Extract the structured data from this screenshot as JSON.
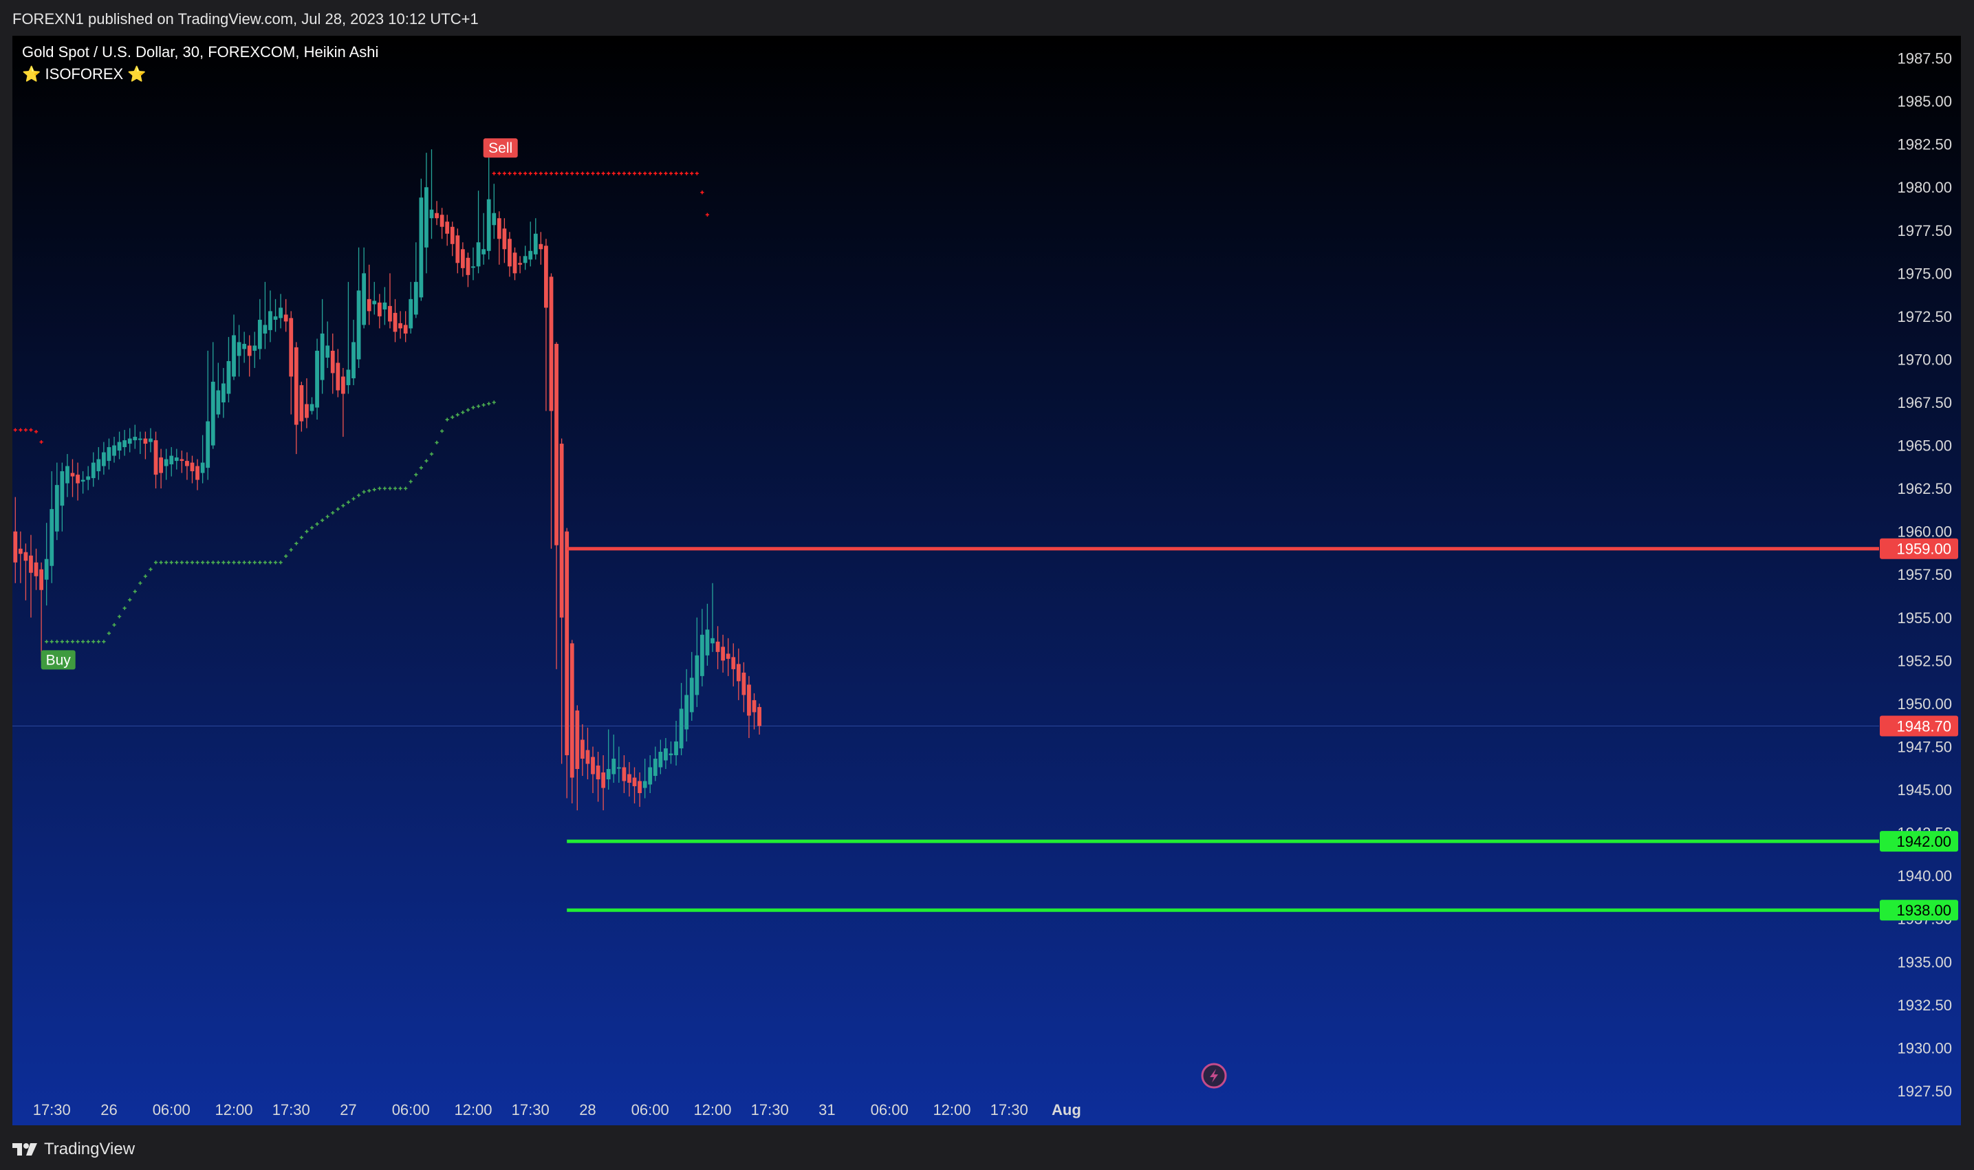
{
  "header": {
    "published_text": "FOREXN1 published on TradingView.com, Jul 28, 2023 10:12 UTC+1"
  },
  "legend": {
    "symbol_line": "Gold Spot / U.S. Dollar, 30, FOREXCOM, Heikin Ashi",
    "star_left": "⭐",
    "indicator_name": "ISOFOREX",
    "star_right": "⭐"
  },
  "footer": {
    "brand": "TradingView",
    "logo_icon": "tradingview-logo-icon"
  },
  "colors": {
    "bull": "#26a69a",
    "bear": "#ef5350",
    "gradient_top": "#000000",
    "gradient_bottom": "#0d2e9a",
    "stop_dots": "#ff1a1a",
    "trail_dots": "#4caf50",
    "sell_line": "#ef4444",
    "target_line": "#22ee33"
  },
  "chart_data": {
    "type": "candlestick",
    "style": "Heikin Ashi",
    "symbol": "Gold Spot / U.S. Dollar",
    "interval": "30",
    "exchange": "FOREXCOM",
    "ylim": [
      1925.5,
      1988.8
    ],
    "y_ticks": [
      "1987.50",
      "1985.00",
      "1982.50",
      "1980.00",
      "1977.50",
      "1975.00",
      "1972.50",
      "1970.00",
      "1967.50",
      "1965.00",
      "1962.50",
      "1960.00",
      "1957.50",
      "1955.00",
      "1952.50",
      "1950.00",
      "1947.50",
      "1945.00",
      "1942.50",
      "1940.00",
      "1937.50",
      "1935.00",
      "1932.50",
      "1930.00",
      "1927.50"
    ],
    "x_ticks": [
      {
        "label": "17:30",
        "bar": 7
      },
      {
        "label": "26",
        "bar": 18
      },
      {
        "label": "06:00",
        "bar": 30
      },
      {
        "label": "12:00",
        "bar": 42
      },
      {
        "label": "17:30",
        "bar": 53
      },
      {
        "label": "27",
        "bar": 64
      },
      {
        "label": "06:00",
        "bar": 76
      },
      {
        "label": "12:00",
        "bar": 88
      },
      {
        "label": "17:30",
        "bar": 99
      },
      {
        "label": "28",
        "bar": 110
      },
      {
        "label": "06:00",
        "bar": 122
      },
      {
        "label": "12:00",
        "bar": 134
      },
      {
        "label": "17:30",
        "bar": 145
      },
      {
        "label": "31",
        "bar": 156
      },
      {
        "label": "06:00",
        "bar": 168
      },
      {
        "label": "12:00",
        "bar": 180
      },
      {
        "label": "17:30",
        "bar": 191
      },
      {
        "label": "Aug",
        "bar": 202
      }
    ],
    "last_price": 1948.7,
    "price_labels": [
      {
        "value": "1959.00",
        "kind": "sell"
      },
      {
        "value": "1948.70",
        "kind": "last"
      },
      {
        "value": "1942.00",
        "kind": "target"
      },
      {
        "value": "1938.00",
        "kind": "target"
      }
    ],
    "horizontal_levels": [
      {
        "price": 1959.0,
        "kind": "sell",
        "from_bar": 106
      },
      {
        "price": 1942.0,
        "kind": "target",
        "from_bar": 106
      },
      {
        "price": 1938.0,
        "kind": "target",
        "from_bar": 106
      }
    ],
    "signals": [
      {
        "label": "Buy",
        "bar": 6,
        "price": 1953.5
      },
      {
        "label": "Sell",
        "bar": 91,
        "price": 1981
      }
    ],
    "stop_dots": [
      {
        "from_bar": 0,
        "to_bar": 5,
        "values": [
          1965.9,
          1965.9,
          1965.9,
          1965.9,
          1965.8,
          1965.2
        ]
      },
      {
        "from_bar": 92,
        "to_bar": 131,
        "flat": 1980.8
      },
      {
        "bar": 132,
        "price": 1979.7
      },
      {
        "bar": 133,
        "price": 1978.4
      }
    ],
    "trail_dots_knots": [
      [
        6,
        1953.6
      ],
      [
        17,
        1953.6
      ],
      [
        24,
        1957.0
      ],
      [
        27,
        1958.2
      ],
      [
        51,
        1958.2
      ],
      [
        54,
        1959.3
      ],
      [
        56,
        1960.0
      ],
      [
        62,
        1961.3
      ],
      [
        67,
        1962.3
      ],
      [
        70,
        1962.5
      ],
      [
        75,
        1962.5
      ],
      [
        80,
        1964.5
      ],
      [
        83,
        1966.5
      ],
      [
        88,
        1967.2
      ],
      [
        92,
        1967.5
      ]
    ],
    "candles": [
      [
        1960.0,
        1958.2,
        1962.0,
        1957.0
      ],
      [
        1959.0,
        1958.7,
        1960.0,
        1957.0
      ],
      [
        1958.8,
        1958.3,
        1959.3,
        1956.0
      ],
      [
        1958.6,
        1957.6,
        1959.8,
        1955.0
      ],
      [
        1958.2,
        1957.4,
        1959.0,
        1956.6
      ],
      [
        1957.8,
        1956.6,
        1958.2,
        1952.5
      ],
      [
        1957.2,
        1958.4,
        1960.5,
        1955.7
      ],
      [
        1958.0,
        1961.3,
        1963.5,
        1957.0
      ],
      [
        1960.0,
        1962.7,
        1964.0,
        1959.5
      ],
      [
        1961.5,
        1963.5,
        1964.0,
        1960.0
      ],
      [
        1962.8,
        1963.8,
        1964.5,
        1962.0
      ],
      [
        1963.4,
        1963.2,
        1964.2,
        1962.0
      ],
      [
        1963.3,
        1962.8,
        1964.0,
        1961.8
      ],
      [
        1962.9,
        1963.0,
        1963.5,
        1962.2
      ],
      [
        1963.0,
        1963.2,
        1963.8,
        1962.4
      ],
      [
        1963.1,
        1964.0,
        1964.6,
        1962.6
      ],
      [
        1963.5,
        1964.2,
        1964.9,
        1963.0
      ],
      [
        1963.8,
        1964.6,
        1965.2,
        1963.3
      ],
      [
        1964.1,
        1964.9,
        1965.4,
        1963.6
      ],
      [
        1964.4,
        1965.0,
        1965.5,
        1964.0
      ],
      [
        1964.7,
        1965.2,
        1965.8,
        1964.2
      ],
      [
        1964.9,
        1965.3,
        1965.9,
        1964.4
      ],
      [
        1965.1,
        1965.4,
        1966.0,
        1964.6
      ],
      [
        1965.3,
        1965.5,
        1966.2,
        1964.8
      ],
      [
        1965.4,
        1965.4,
        1965.8,
        1964.5
      ],
      [
        1965.4,
        1965.1,
        1965.8,
        1964.2
      ],
      [
        1965.2,
        1965.4,
        1966.0,
        1964.6
      ],
      [
        1965.3,
        1963.3,
        1965.8,
        1962.5
      ],
      [
        1964.3,
        1963.4,
        1964.8,
        1962.5
      ],
      [
        1963.8,
        1964.2,
        1964.8,
        1963.0
      ],
      [
        1963.9,
        1964.4,
        1964.9,
        1963.2
      ],
      [
        1964.1,
        1964.3,
        1964.8,
        1963.6
      ],
      [
        1964.2,
        1964.1,
        1964.7,
        1963.4
      ],
      [
        1964.1,
        1963.8,
        1964.6,
        1963.0
      ],
      [
        1964.0,
        1963.5,
        1964.4,
        1962.8
      ],
      [
        1963.8,
        1963.0,
        1964.2,
        1962.4
      ],
      [
        1963.4,
        1964.0,
        1965.6,
        1962.8
      ],
      [
        1963.7,
        1966.4,
        1970.5,
        1963.0
      ],
      [
        1965.0,
        1968.7,
        1971.0,
        1964.8
      ],
      [
        1966.8,
        1968.2,
        1969.8,
        1966.6
      ],
      [
        1967.5,
        1968.6,
        1969.5,
        1966.6
      ],
      [
        1968.0,
        1969.9,
        1971.3,
        1967.5
      ],
      [
        1969.0,
        1971.4,
        1972.6,
        1968.8
      ],
      [
        1970.2,
        1971.0,
        1972.0,
        1969.0
      ],
      [
        1970.6,
        1970.9,
        1971.6,
        1969.8
      ],
      [
        1970.8,
        1970.2,
        1971.4,
        1969.0
      ],
      [
        1970.5,
        1970.8,
        1971.6,
        1969.5
      ],
      [
        1970.6,
        1972.3,
        1973.5,
        1970.0
      ],
      [
        1971.5,
        1972.0,
        1974.5,
        1970.6
      ],
      [
        1971.7,
        1972.8,
        1974.0,
        1971.0
      ],
      [
        1972.3,
        1972.5,
        1973.5,
        1971.6
      ],
      [
        1972.4,
        1973.0,
        1973.8,
        1971.8
      ],
      [
        1972.6,
        1972.2,
        1973.5,
        1971.6
      ],
      [
        1972.4,
        1969.0,
        1972.8,
        1966.8
      ],
      [
        1970.7,
        1966.2,
        1971.0,
        1964.5
      ],
      [
        1968.5,
        1966.4,
        1968.7,
        1965.8
      ],
      [
        1967.4,
        1966.6,
        1968.9,
        1966.0
      ],
      [
        1967.0,
        1967.4,
        1967.8,
        1966.8
      ],
      [
        1967.2,
        1970.5,
        1971.2,
        1966.5
      ],
      [
        1968.8,
        1971.5,
        1973.5,
        1968.0
      ],
      [
        1970.1,
        1970.8,
        1972.2,
        1969.5
      ],
      [
        1970.5,
        1969.2,
        1971.5,
        1968.0
      ],
      [
        1969.8,
        1968.2,
        1970.6,
        1967.8
      ],
      [
        1969.0,
        1968.0,
        1969.5,
        1965.5
      ],
      [
        1968.5,
        1969.4,
        1974.5,
        1968.0
      ],
      [
        1968.9,
        1971.0,
        1972.3,
        1968.5
      ],
      [
        1970.0,
        1974.0,
        1976.5,
        1969.5
      ],
      [
        1972.0,
        1975.0,
        1976.5,
        1971.8
      ],
      [
        1973.5,
        1972.8,
        1975.5,
        1972.0
      ],
      [
        1973.2,
        1973.4,
        1974.5,
        1972.6
      ],
      [
        1973.3,
        1972.5,
        1973.8,
        1971.8
      ],
      [
        1972.9,
        1973.3,
        1974.2,
        1972.0
      ],
      [
        1973.1,
        1972.2,
        1975.0,
        1971.8
      ],
      [
        1972.7,
        1971.6,
        1973.5,
        1971.0
      ],
      [
        1972.1,
        1971.8,
        1972.8,
        1971.2
      ],
      [
        1972.0,
        1971.5,
        1972.8,
        1971.0
      ],
      [
        1971.8,
        1973.5,
        1974.5,
        1971.5
      ],
      [
        1972.6,
        1974.5,
        1976.8,
        1972.4
      ],
      [
        1973.6,
        1979.4,
        1980.5,
        1973.4
      ],
      [
        1976.5,
        1980.0,
        1982.0,
        1975.0
      ],
      [
        1978.2,
        1978.7,
        1982.2,
        1977.0
      ],
      [
        1978.5,
        1978.2,
        1979.2,
        1977.8
      ],
      [
        1978.4,
        1977.7,
        1978.8,
        1977.0
      ],
      [
        1978.0,
        1977.3,
        1978.4,
        1976.6
      ],
      [
        1977.7,
        1976.7,
        1978.0,
        1976.0
      ],
      [
        1977.2,
        1975.6,
        1977.6,
        1975.0
      ],
      [
        1976.4,
        1975.3,
        1976.8,
        1974.8
      ],
      [
        1975.9,
        1974.9,
        1976.2,
        1974.2
      ],
      [
        1975.4,
        1975.4,
        1976.5,
        1974.6
      ],
      [
        1975.4,
        1976.8,
        1979.8,
        1975.0
      ],
      [
        1976.1,
        1976.4,
        1978.5,
        1975.5
      ],
      [
        1976.3,
        1979.3,
        1982.2,
        1975.8
      ],
      [
        1977.8,
        1978.5,
        1980.2,
        1977.0
      ],
      [
        1978.2,
        1977.0,
        1978.6,
        1975.5
      ],
      [
        1977.6,
        1976.4,
        1978.2,
        1975.6
      ],
      [
        1977.0,
        1975.4,
        1977.4,
        1974.8
      ],
      [
        1976.2,
        1975.0,
        1976.5,
        1974.6
      ],
      [
        1975.6,
        1975.5,
        1976.0,
        1975.0
      ],
      [
        1975.6,
        1976.0,
        1976.6,
        1975.2
      ],
      [
        1975.8,
        1976.3,
        1978.0,
        1975.4
      ],
      [
        1976.1,
        1977.3,
        1978.2,
        1975.8
      ],
      [
        1976.7,
        1976.4,
        1977.4,
        1975.5
      ],
      [
        1976.6,
        1973.0,
        1977.0,
        1967.0
      ],
      [
        1974.8,
        1967.0,
        1975.0,
        1959.0
      ],
      [
        1970.9,
        1959.2,
        1971.0,
        1952.0
      ],
      [
        1965.1,
        1955.0,
        1965.4,
        1946.5
      ],
      [
        1960.0,
        1947.0,
        1960.2,
        1944.5
      ],
      [
        1953.5,
        1945.7,
        1953.7,
        1944.2
      ],
      [
        1949.6,
        1946.2,
        1949.9,
        1943.8
      ],
      [
        1947.9,
        1946.8,
        1948.8,
        1945.8
      ],
      [
        1947.3,
        1946.5,
        1948.6,
        1945.6
      ],
      [
        1946.9,
        1945.9,
        1947.5,
        1944.8
      ],
      [
        1946.4,
        1945.6,
        1947.2,
        1944.3
      ],
      [
        1946.0,
        1945.1,
        1947.0,
        1943.8
      ],
      [
        1945.6,
        1946.2,
        1948.5,
        1945.0
      ],
      [
        1945.9,
        1946.8,
        1948.2,
        1945.4
      ],
      [
        1946.3,
        1946.3,
        1947.5,
        1945.4
      ],
      [
        1946.3,
        1945.5,
        1947.0,
        1944.8
      ],
      [
        1945.9,
        1945.4,
        1946.6,
        1944.6
      ],
      [
        1945.7,
        1945.2,
        1946.3,
        1944.2
      ],
      [
        1945.5,
        1944.8,
        1946.0,
        1944.0
      ],
      [
        1945.1,
        1945.5,
        1946.8,
        1944.5
      ],
      [
        1945.3,
        1946.3,
        1947.0,
        1944.8
      ],
      [
        1945.8,
        1946.8,
        1947.5,
        1945.5
      ],
      [
        1946.3,
        1947.2,
        1947.9,
        1945.9
      ],
      [
        1946.7,
        1947.4,
        1948.0,
        1946.2
      ],
      [
        1947.0,
        1947.1,
        1947.8,
        1946.5
      ],
      [
        1947.0,
        1947.8,
        1949.0,
        1946.4
      ],
      [
        1947.4,
        1949.7,
        1951.2,
        1947.0
      ],
      [
        1948.5,
        1950.5,
        1952.0,
        1947.8
      ],
      [
        1949.5,
        1951.5,
        1953.0,
        1949.0
      ],
      [
        1950.5,
        1952.8,
        1955.0,
        1949.8
      ],
      [
        1951.6,
        1954.0,
        1955.5,
        1951.0
      ],
      [
        1952.8,
        1954.3,
        1955.8,
        1952.2
      ],
      [
        1953.5,
        1953.8,
        1957.0,
        1953.0
      ],
      [
        1953.6,
        1953.0,
        1954.5,
        1952.0
      ],
      [
        1953.3,
        1952.5,
        1954.0,
        1951.8
      ],
      [
        1952.9,
        1952.6,
        1953.8,
        1951.6
      ],
      [
        1952.7,
        1952.0,
        1953.5,
        1951.0
      ],
      [
        1952.3,
        1951.3,
        1953.2,
        1950.2
      ],
      [
        1951.8,
        1950.5,
        1952.4,
        1949.5
      ],
      [
        1951.1,
        1949.3,
        1951.6,
        1948.0
      ],
      [
        1950.2,
        1949.5,
        1950.6,
        1948.5
      ],
      [
        1949.8,
        1948.7,
        1950.0,
        1948.2
      ]
    ]
  }
}
